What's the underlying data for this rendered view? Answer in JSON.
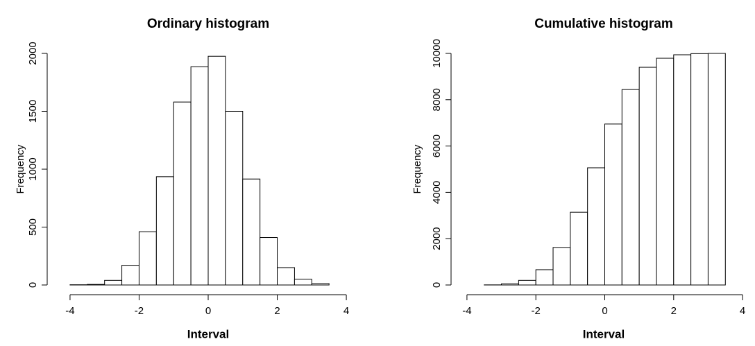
{
  "chart_data": [
    {
      "type": "histogram",
      "title": "Ordinary histogram",
      "x_label": "Interval",
      "y_label": "Frequency",
      "bins": [
        -4,
        -3.5,
        -3,
        -2.5,
        -2,
        -1.5,
        -1,
        -0.5,
        0,
        0.5,
        1,
        1.5,
        2,
        2.5,
        3,
        3.5
      ],
      "values": [
        2,
        5,
        40,
        170,
        460,
        935,
        1580,
        1885,
        1975,
        1500,
        915,
        410,
        150,
        50,
        12
      ],
      "color": "#ffffff",
      "xlim": [
        -4.3,
        4.3
      ],
      "xticks": [
        -4,
        -2,
        0,
        2,
        4
      ],
      "ylim": [
        0,
        2000
      ],
      "yticks": [
        0,
        500,
        1000,
        1500,
        2000
      ]
    },
    {
      "type": "histogram",
      "title": "Cumulative histogram",
      "x_label": "Interval",
      "y_label": "Frequency",
      "bins": [
        -3.5,
        -3,
        -2.5,
        -2,
        -1.5,
        -1,
        -0.5,
        0,
        0.5,
        1,
        1.5,
        2,
        2.5,
        3,
        3.5
      ],
      "values": [
        5,
        50,
        200,
        660,
        1620,
        3140,
        5060,
        6950,
        8440,
        9400,
        9790,
        9940,
        9990,
        10000
      ],
      "color": "#ffffff",
      "xlim": [
        -4.3,
        4.3
      ],
      "xticks": [
        -4,
        -2,
        0,
        2,
        4
      ],
      "ylim": [
        0,
        10000
      ],
      "yticks": [
        0,
        2000,
        4000,
        6000,
        8000,
        10000
      ]
    }
  ]
}
